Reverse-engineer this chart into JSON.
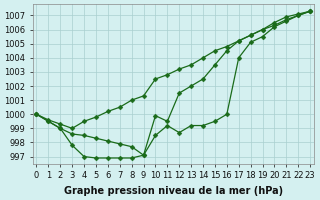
{
  "series": [
    {
      "name": "s_bottom",
      "x": [
        0,
        1,
        2,
        3,
        4,
        5,
        6,
        7,
        8,
        9,
        10,
        11,
        12,
        13,
        14,
        15,
        16,
        17,
        18,
        19,
        20,
        21,
        22,
        23
      ],
      "y": [
        1000.0,
        999.5,
        999.0,
        997.8,
        997.0,
        996.9,
        996.9,
        996.9,
        996.9,
        997.1,
        998.5,
        999.2,
        998.7,
        999.2,
        999.2,
        999.5,
        1000.0,
        1004.0,
        1005.1,
        1005.5,
        1006.2,
        1006.6,
        1007.0,
        1007.3
      ]
    },
    {
      "name": "s_middle",
      "x": [
        0,
        1,
        2,
        3,
        4,
        5,
        6,
        7,
        8,
        9,
        10,
        11,
        12,
        13,
        14,
        15,
        16,
        17,
        18,
        19,
        20,
        21,
        22,
        23
      ],
      "y": [
        1000.0,
        999.5,
        999.0,
        998.6,
        998.5,
        998.3,
        998.1,
        997.9,
        997.7,
        997.1,
        999.9,
        999.5,
        1001.5,
        1002.0,
        1002.5,
        1003.5,
        1004.5,
        1005.2,
        1005.6,
        1006.0,
        1006.5,
        1006.9,
        1007.1,
        1007.3
      ]
    },
    {
      "name": "s_top",
      "x": [
        0,
        1,
        2,
        3,
        4,
        5,
        6,
        7,
        8,
        9,
        10,
        11,
        12,
        13,
        14,
        15,
        16,
        17,
        18,
        19,
        20,
        21,
        22,
        23
      ],
      "y": [
        1000.0,
        999.6,
        999.3,
        999.0,
        999.5,
        999.8,
        1000.2,
        1000.5,
        1001.0,
        1001.3,
        1002.5,
        1002.8,
        1003.2,
        1003.5,
        1004.0,
        1004.5,
        1004.8,
        1005.2,
        1005.6,
        1006.0,
        1006.3,
        1006.7,
        1007.0,
        1007.3
      ]
    }
  ],
  "line_color": "#1a6b1a",
  "marker": "D",
  "markersize": 2.5,
  "linewidth": 0.9,
  "xlabel": "Graphe pression niveau de la mer (hPa)",
  "xlabel_fontsize": 7,
  "xlabel_bold": true,
  "background_color": "#d4f0f0",
  "grid_color": "#aacfcf",
  "tick_fontsize": 6,
  "xlim": [
    -0.3,
    23.3
  ],
  "ylim": [
    996.5,
    1007.8
  ],
  "yticks": [
    997,
    998,
    999,
    1000,
    1001,
    1002,
    1003,
    1004,
    1005,
    1006,
    1007
  ],
  "xticks": [
    0,
    1,
    2,
    3,
    4,
    5,
    6,
    7,
    8,
    9,
    10,
    11,
    12,
    13,
    14,
    15,
    16,
    17,
    18,
    19,
    20,
    21,
    22,
    23
  ]
}
